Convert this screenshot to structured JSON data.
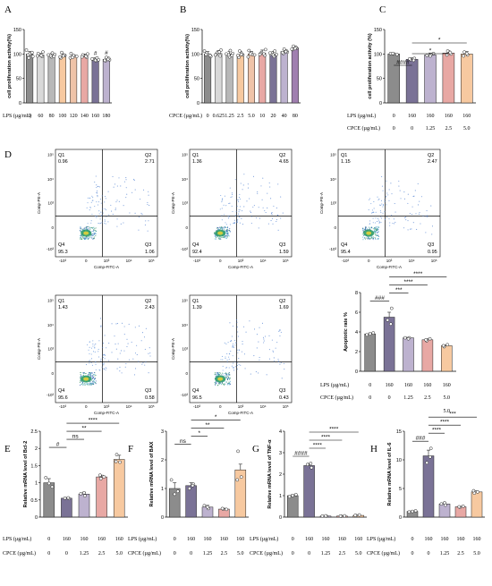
{
  "chart_data": [
    {
      "id": "A",
      "type": "bar",
      "panel_label": "A",
      "ylabel": "cell proliferation activity(%)",
      "ylim": [
        0,
        150
      ],
      "yticks": [
        0,
        50,
        100,
        150
      ],
      "categories": [
        "0",
        "60",
        "80",
        "100",
        "120",
        "140",
        "160",
        "180"
      ],
      "values": [
        100,
        98,
        97,
        96,
        95,
        96,
        88,
        89
      ],
      "errors": [
        5,
        3,
        4,
        4,
        3,
        4,
        4,
        4
      ],
      "colors": [
        "#8c8c8c",
        "#d9d9d9",
        "#b8b8b8",
        "#f7c9a0",
        "#efc3a8",
        "#e8a8a4",
        "#7a7296",
        "#bdb2cf"
      ],
      "points": [
        [
          108,
          100,
          95,
          92,
          103,
          98
        ],
        [
          104,
          99,
          95,
          101,
          97,
          96
        ],
        [
          102,
          98,
          94,
          99,
          96,
          95
        ],
        [
          103,
          97,
          92,
          98,
          94,
          96
        ],
        [
          101,
          96,
          92,
          97,
          95,
          93
        ],
        [
          100,
          97,
          93,
          98,
          95,
          94
        ],
        [
          92,
          89,
          86,
          90,
          87,
          88
        ],
        [
          93,
          88,
          86,
          91,
          87,
          89
        ]
      ],
      "sig_labels": [
        "",
        "",
        "",
        "",
        "",
        "",
        "#",
        "#"
      ],
      "conditions": [
        {
          "label": "LPS (µg/mL)",
          "values": [
            "0",
            "60",
            "80",
            "100",
            "120",
            "140",
            "160",
            "180"
          ]
        }
      ]
    },
    {
      "id": "B",
      "type": "bar",
      "panel_label": "B",
      "ylabel": "cell proliferation activity(%)",
      "ylim": [
        0,
        150
      ],
      "yticks": [
        0,
        50,
        100,
        150
      ],
      "categories": [
        "0",
        "0.625",
        "1.25",
        "2.5",
        "5.0",
        "10",
        "20",
        "40",
        "80"
      ],
      "values": [
        100,
        101,
        100,
        99,
        100,
        102,
        100,
        105,
        112
      ],
      "errors": [
        5,
        6,
        5,
        6,
        5,
        6,
        5,
        4,
        4
      ],
      "colors": [
        "#8c8c8c",
        "#d9d9d9",
        "#b8b8b8",
        "#f7c9a0",
        "#efc3a8",
        "#e8a8a4",
        "#7a7296",
        "#bdb2cf",
        "#a07fb0"
      ],
      "points": [
        [
          106,
          100,
          95,
          102,
          97,
          99
        ],
        [
          108,
          102,
          96,
          99,
          104,
          98
        ],
        [
          107,
          100,
          94,
          101,
          98,
          97
        ],
        [
          106,
          98,
          93,
          100,
          97,
          99
        ],
        [
          107,
          99,
          94,
          102,
          98,
          100
        ],
        [
          109,
          103,
          97,
          101,
          100,
          99
        ],
        [
          106,
          100,
          95,
          102,
          98,
          99
        ],
        [
          110,
          104,
          101,
          106,
          103,
          105
        ],
        [
          116,
          112,
          109,
          113,
          110,
          111
        ]
      ],
      "conditions": [
        {
          "label": "CPCE (µg/mL)",
          "values": [
            "0",
            "0.625",
            "1.25",
            "2.5",
            "5.0",
            "10",
            "20",
            "40",
            "80"
          ]
        }
      ]
    },
    {
      "id": "C",
      "type": "bar",
      "panel_label": "C",
      "ylabel": "cell proliferation activity (%)",
      "ylim": [
        0,
        150
      ],
      "yticks": [
        0,
        50,
        100,
        150
      ],
      "values": [
        100,
        89,
        98,
        102,
        100
      ],
      "errors": [
        2,
        3,
        4,
        5,
        5
      ],
      "colors": [
        "#8c8c8c",
        "#7a7296",
        "#bdb2cf",
        "#e8a8a4",
        "#f7c9a0"
      ],
      "points": [
        [
          101,
          100,
          99,
          101
        ],
        [
          91,
          88,
          87,
          90
        ],
        [
          99,
          97,
          96,
          101
        ],
        [
          106,
          100,
          98,
          103
        ],
        [
          104,
          98,
          96,
          101
        ]
      ],
      "significance": [
        {
          "from": 0,
          "to": 1,
          "label": "####"
        },
        {
          "from": 1,
          "to": 3,
          "label": "*"
        },
        {
          "from": 1,
          "to": 4,
          "label": "*"
        }
      ],
      "conditions": [
        {
          "label": "LPS (µg/mL)",
          "values": [
            "0",
            "160",
            "160",
            "160",
            "160"
          ]
        },
        {
          "label": "CPCE (µg/mL)",
          "values": [
            "0",
            "0",
            "1.25",
            "2.5",
            "5.0"
          ]
        }
      ]
    },
    {
      "id": "D-bar",
      "type": "bar",
      "panel_label": "D",
      "ylabel": "Apoptotic rate %",
      "ylim": [
        0,
        8
      ],
      "yticks": [
        0,
        2,
        4,
        6,
        8
      ],
      "values": [
        3.8,
        5.5,
        3.4,
        3.2,
        2.6
      ],
      "errors": [
        0.1,
        0.5,
        0.05,
        0.1,
        0.1
      ],
      "colors": [
        "#8c8c8c",
        "#7a7296",
        "#bdb2cf",
        "#e8a8a4",
        "#f7c9a0"
      ],
      "points": [
        [
          3.7,
          3.8,
          3.9
        ],
        [
          6.4,
          5.2,
          4.8
        ],
        [
          3.4,
          3.4,
          3.3
        ],
        [
          3.1,
          3.3,
          3.2
        ],
        [
          2.5,
          2.7,
          2.6
        ]
      ],
      "significance": [
        {
          "from": 0,
          "to": 1,
          "label": "###"
        },
        {
          "from": 1,
          "to": 2,
          "label": "***"
        },
        {
          "from": 1,
          "to": 3,
          "label": "****"
        },
        {
          "from": 1,
          "to": 4,
          "label": "****"
        }
      ],
      "conditions": [
        {
          "label": "LPS (µg/mL)",
          "values": [
            "0",
            "160",
            "160",
            "160",
            "160"
          ]
        },
        {
          "label": "CPCE (µg/mL)",
          "values": [
            "0",
            "0",
            "1.25",
            "2.5",
            "5.0"
          ]
        }
      ],
      "extra_value": "5.0"
    },
    {
      "id": "E",
      "type": "bar",
      "panel_label": "E",
      "ylabel": "Relative mRNA level of Bcl-2",
      "ylim": [
        0,
        2.5
      ],
      "yticks": [
        0.0,
        0.5,
        1.0,
        1.5,
        2.0,
        2.5
      ],
      "values": [
        1.0,
        0.55,
        0.67,
        1.17,
        1.68
      ],
      "errors": [
        0.12,
        0.02,
        0.05,
        0.05,
        0.12
      ],
      "colors": [
        "#8c8c8c",
        "#7a7296",
        "#bdb2cf",
        "#e8a8a4",
        "#f7c9a0"
      ],
      "points": [
        [
          1.15,
          0.98,
          0.88
        ],
        [
          0.54,
          0.55,
          0.56
        ],
        [
          0.62,
          0.68,
          0.71
        ],
        [
          1.12,
          1.17,
          1.22
        ],
        [
          1.82,
          1.6,
          1.62
        ]
      ],
      "significance": [
        {
          "from": 0,
          "to": 1,
          "label": "#"
        },
        {
          "from": 1,
          "to": 2,
          "label": "ns"
        },
        {
          "from": 1,
          "to": 3,
          "label": "**"
        },
        {
          "from": 1,
          "to": 4,
          "label": "****"
        }
      ],
      "conditions": [
        {
          "label": "LPS (µg/mL)",
          "values": [
            "0",
            "160",
            "160",
            "160",
            "160"
          ]
        },
        {
          "label": "CPCE (µg/mL)",
          "values": [
            "0",
            "0",
            "1.25",
            "2.5",
            "5.0"
          ]
        }
      ]
    },
    {
      "id": "F",
      "type": "bar",
      "panel_label": "F",
      "ylabel": "Relative mRNA level of BAX",
      "ylim": [
        0,
        3
      ],
      "yticks": [
        0,
        1,
        2,
        3
      ],
      "values": [
        1.0,
        1.1,
        0.35,
        0.28,
        1.65
      ],
      "errors": [
        0.2,
        0.1,
        0.06,
        0.03,
        0.2
      ],
      "colors": [
        "#8c8c8c",
        "#7a7296",
        "#bdb2cf",
        "#e8a8a4",
        "#f7c9a0"
      ],
      "points": [
        [
          1.3,
          0.8,
          0.9
        ],
        [
          1.15,
          1.0,
          1.1
        ],
        [
          0.3,
          0.4,
          0.35
        ],
        [
          0.28,
          0.27,
          0.3
        ],
        [
          2.3,
          1.4,
          1.3
        ]
      ],
      "significance": [
        {
          "from": 0,
          "to": 1,
          "label": "ns"
        },
        {
          "from": 1,
          "to": 2,
          "label": "*"
        },
        {
          "from": 1,
          "to": 3,
          "label": "**"
        },
        {
          "from": 1,
          "to": 4,
          "label": "*"
        }
      ],
      "conditions": [
        {
          "label": "LPS (µg/mL)",
          "values": [
            "0",
            "160",
            "160",
            "160",
            "160"
          ]
        },
        {
          "label": "CPCE (µg/mL)",
          "values": [
            "0",
            "0",
            "1.25",
            "2.5",
            "5.0"
          ]
        }
      ]
    },
    {
      "id": "G",
      "type": "bar",
      "panel_label": "G",
      "ylabel": "Relative mRNA level of TNF-α",
      "ylim": [
        0,
        4
      ],
      "yticks": [
        0,
        1,
        2,
        3,
        4
      ],
      "values": [
        1.0,
        2.4,
        0.05,
        0.05,
        0.08
      ],
      "errors": [
        0.05,
        0.1,
        0.01,
        0.01,
        0.02
      ],
      "colors": [
        "#8c8c8c",
        "#7a7296",
        "#bdb2cf",
        "#e8a8a4",
        "#f7c9a0"
      ],
      "points": [
        [
          0.95,
          1.0,
          1.05
        ],
        [
          2.3,
          2.45,
          2.5
        ],
        [
          0.04,
          0.05,
          0.06
        ],
        [
          0.04,
          0.06,
          0.05
        ],
        [
          0.07,
          0.1,
          0.08
        ]
      ],
      "significance": [
        {
          "from": 0,
          "to": 1,
          "label": "####"
        },
        {
          "from": 1,
          "to": 2,
          "label": "****"
        },
        {
          "from": 1,
          "to": 3,
          "label": "****"
        },
        {
          "from": 1,
          "to": 4,
          "label": "****"
        }
      ],
      "conditions": [
        {
          "label": "LPS (µg/mL)",
          "values": [
            "0",
            "160",
            "160",
            "160",
            "160"
          ]
        },
        {
          "label": "CPCE (µg/mL)",
          "values": [
            "0",
            "0",
            "1.25",
            "2.5",
            "5.0"
          ]
        }
      ]
    },
    {
      "id": "H",
      "type": "bar",
      "panel_label": "H",
      "ylabel": "Relative mRNA level of IL-6",
      "ylim": [
        0,
        15
      ],
      "yticks": [
        0,
        5,
        10,
        15
      ],
      "values": [
        1.0,
        10.7,
        2.3,
        1.8,
        4.4
      ],
      "errors": [
        0.1,
        1.0,
        0.2,
        0.1,
        0.2
      ],
      "colors": [
        "#8c8c8c",
        "#7a7296",
        "#bdb2cf",
        "#e8a8a4",
        "#f7c9a0"
      ],
      "points": [
        [
          0.9,
          1.0,
          1.1
        ],
        [
          12.0,
          9.5,
          10.5
        ],
        [
          2.1,
          2.3,
          2.5
        ],
        [
          1.7,
          1.9,
          1.8
        ],
        [
          4.2,
          4.4,
          4.6
        ]
      ],
      "significance": [
        {
          "from": 0,
          "to": 1,
          "label": "###"
        },
        {
          "from": 1,
          "to": 2,
          "label": "****"
        },
        {
          "from": 1,
          "to": 3,
          "label": "****"
        },
        {
          "from": 1,
          "to": 4,
          "label": "***"
        }
      ],
      "conditions": [
        {
          "label": "LPS (µg/mL)",
          "values": [
            "0",
            "160",
            "160",
            "160",
            "160"
          ]
        },
        {
          "label": "CPCE (µg/mL)",
          "values": [
            "0",
            "0",
            "1.25",
            "2.5",
            "5.0"
          ]
        }
      ]
    }
  ],
  "flow_plots": [
    {
      "q1_label": "Q1",
      "q1": "0.96",
      "q2_label": "Q2",
      "q2": "2.71",
      "q3_label": "Q3",
      "q3": "1.06",
      "q4_label": "Q4",
      "q4": "95.3"
    },
    {
      "q1_label": "Q1",
      "q1": "1.36",
      "q2_label": "Q2",
      "q2": "4.65",
      "q3_label": "Q3",
      "q3": "1.59",
      "q4_label": "Q4",
      "q4": "92.4"
    },
    {
      "q1_label": "Q1",
      "q1": "1.15",
      "q2_label": "Q2",
      "q2": "2.47",
      "q3_label": "Q3",
      "q3": "0.95",
      "q4_label": "Q4",
      "q4": "95.4"
    },
    {
      "q1_label": "Q1",
      "q1": "1.43",
      "q2_label": "Q2",
      "q2": "2.43",
      "q3_label": "Q3",
      "q3": "0.58",
      "q4_label": "Q4",
      "q4": "95.6"
    },
    {
      "q1_label": "Q1",
      "q1": "1.39",
      "q2_label": "Q2",
      "q2": "1.69",
      "q3_label": "Q3",
      "q3": "0.43",
      "q4_label": "Q4",
      "q4": "96.5"
    }
  ],
  "flow_axes": {
    "x_label": "Comp-FITC-A",
    "y_label": "Comp-PE-A",
    "y_ticks": [
      "10⁵",
      "10⁴",
      "10³",
      "0",
      "-10³"
    ],
    "x_ticks": [
      "-10³",
      "0",
      "10³",
      "10⁴",
      "10⁵"
    ]
  }
}
